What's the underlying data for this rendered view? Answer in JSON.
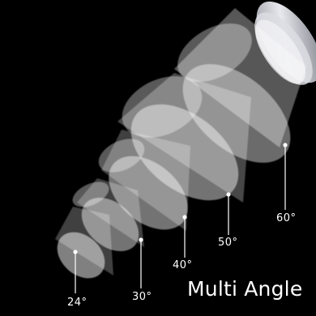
{
  "title": "Multi Angle",
  "angles": [
    {
      "label": "24°"
    },
    {
      "label": "30°"
    },
    {
      "label": "40°"
    },
    {
      "label": "50°"
    },
    {
      "label": "60°"
    }
  ],
  "colors": {
    "background": "#000000",
    "beam": "#ffffff",
    "label": "#ffffff"
  }
}
